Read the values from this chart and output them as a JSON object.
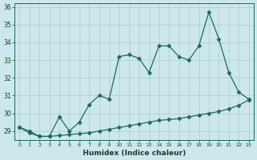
{
  "title": "",
  "xlabel": "Humidex (Indice chaleur)",
  "ylabel": "",
  "bg_color": "#cce8ed",
  "grid_color": "#aacccc",
  "line_color": "#1a6b5a",
  "x_jagged": [
    0,
    1,
    2,
    3,
    4,
    5,
    6,
    7,
    8,
    9,
    10,
    11,
    12,
    13,
    14,
    15,
    16,
    17,
    18,
    19,
    20,
    21,
    22,
    23
  ],
  "y_jagged": [
    29.2,
    29.0,
    28.7,
    28.7,
    29.8,
    29.0,
    29.5,
    30.5,
    31.0,
    30.8,
    33.2,
    33.3,
    33.1,
    32.3,
    33.8,
    33.8,
    33.2,
    33.0,
    33.8,
    35.7,
    34.2,
    32.3,
    31.2,
    30.8
  ],
  "x_straight": [
    0,
    1,
    2,
    3,
    4,
    5,
    6,
    7,
    8,
    9,
    10,
    11,
    12,
    13,
    14,
    15,
    16,
    17,
    18,
    19,
    20,
    21,
    22,
    23
  ],
  "y_straight": [
    29.2,
    28.9,
    28.7,
    28.7,
    28.75,
    28.8,
    28.85,
    28.9,
    29.0,
    29.1,
    29.2,
    29.3,
    29.4,
    29.5,
    29.6,
    29.65,
    29.7,
    29.8,
    29.9,
    30.0,
    30.1,
    30.25,
    30.45,
    30.75
  ],
  "ylim": [
    28.5,
    36.2
  ],
  "xlim": [
    -0.5,
    23.5
  ],
  "yticks": [
    29,
    30,
    31,
    32,
    33,
    34,
    35,
    36
  ]
}
